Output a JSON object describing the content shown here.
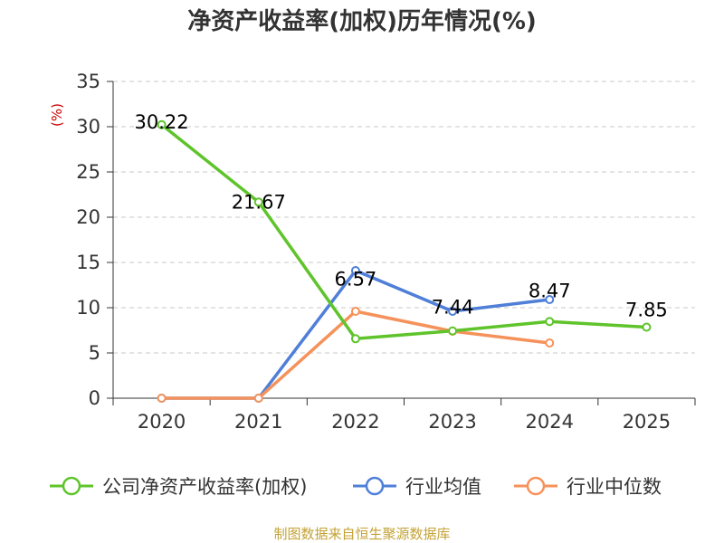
{
  "chart_data": {
    "type": "line",
    "title": "净资产收益率(加权)历年情况(%)",
    "xlabel": "",
    "ylabel": "(%)",
    "categories": [
      "2020",
      "2021",
      "2022",
      "2023",
      "2024",
      "2025"
    ],
    "ylim": [
      0,
      35
    ],
    "yticks": [
      0,
      5,
      10,
      15,
      20,
      25,
      30,
      35
    ],
    "grid": true,
    "legend_position": "bottom",
    "series": [
      {
        "name": "公司净资产收益率(加权)",
        "color": "#5fc42b",
        "values": [
          30.22,
          21.67,
          6.57,
          7.44,
          8.47,
          7.85
        ],
        "labels": [
          "30.22",
          "21.67",
          "6.57",
          "7.44",
          "8.47",
          "7.85"
        ]
      },
      {
        "name": "行业均值",
        "color": "#4f7fd8",
        "values": [
          0,
          0,
          14.1,
          9.6,
          10.9,
          null
        ],
        "labels": []
      },
      {
        "name": "行业中位数",
        "color": "#f5925b",
        "values": [
          0,
          0,
          9.6,
          7.4,
          6.1,
          null
        ],
        "labels": []
      }
    ]
  },
  "source": "制图数据来自恒生聚源数据库"
}
